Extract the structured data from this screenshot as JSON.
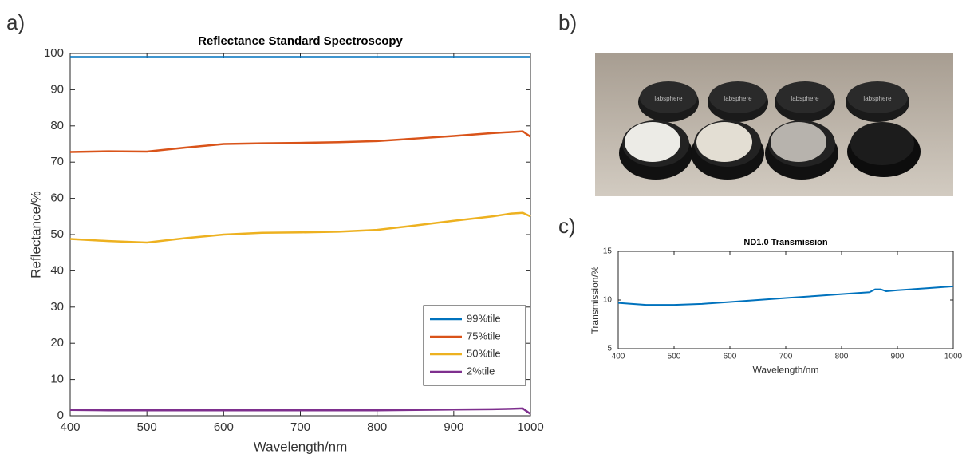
{
  "panel_labels": [
    "a)",
    "b)",
    "c)"
  ],
  "photo": {
    "lid_text": "labsphere"
  },
  "chart_data": [
    {
      "type": "line",
      "title": "Reflectance Standard Spectroscopy",
      "xlabel": "Wavelength/nm",
      "ylabel": "Reflectance/%",
      "x": [
        400,
        450,
        500,
        550,
        600,
        650,
        700,
        750,
        800,
        850,
        900,
        950,
        975,
        990,
        1000
      ],
      "series": [
        {
          "name": "99%tile",
          "color": "#0072bd",
          "values": [
            99,
            99,
            99,
            99,
            99,
            99,
            99,
            99,
            99,
            99,
            99,
            99,
            99,
            99,
            99
          ]
        },
        {
          "name": "75%tile",
          "color": "#d95319",
          "values": [
            72.8,
            73,
            72.9,
            74,
            75,
            75.2,
            75.3,
            75.5,
            75.8,
            76.5,
            77.2,
            78,
            78.3,
            78.5,
            77
          ]
        },
        {
          "name": "50%tile",
          "color": "#edb120",
          "values": [
            48.8,
            48.2,
            47.8,
            49,
            50,
            50.5,
            50.6,
            50.8,
            51.3,
            52.5,
            53.8,
            55,
            55.8,
            56,
            55
          ]
        },
        {
          "name": "2%tile",
          "color": "#7e2f8e",
          "values": [
            1.6,
            1.5,
            1.5,
            1.5,
            1.5,
            1.5,
            1.5,
            1.5,
            1.5,
            1.6,
            1.7,
            1.8,
            1.9,
            2,
            0.5
          ]
        }
      ],
      "xlim": [
        400,
        1000
      ],
      "xticks": [
        400,
        500,
        600,
        700,
        800,
        900,
        1000
      ],
      "ylim": [
        0,
        100
      ],
      "yticks": [
        0,
        10,
        20,
        30,
        40,
        50,
        60,
        70,
        80,
        90,
        100
      ],
      "legend": "lower right"
    },
    {
      "type": "line",
      "title": "ND1.0 Transmission",
      "xlabel": "Wavelength/nm",
      "ylabel": "Transmission/%",
      "x": [
        400,
        450,
        500,
        550,
        600,
        650,
        700,
        750,
        800,
        850,
        860,
        870,
        880,
        900,
        950,
        1000
      ],
      "values": [
        9.7,
        9.5,
        9.5,
        9.6,
        9.8,
        10,
        10.2,
        10.4,
        10.6,
        10.8,
        11.1,
        11.1,
        10.9,
        11,
        11.2,
        11.4
      ],
      "color": "#0072bd",
      "xlim": [
        400,
        1000
      ],
      "xticks": [
        400,
        500,
        600,
        700,
        800,
        900,
        1000
      ],
      "ylim": [
        5,
        15
      ],
      "yticks": [
        5,
        10,
        15
      ]
    }
  ]
}
